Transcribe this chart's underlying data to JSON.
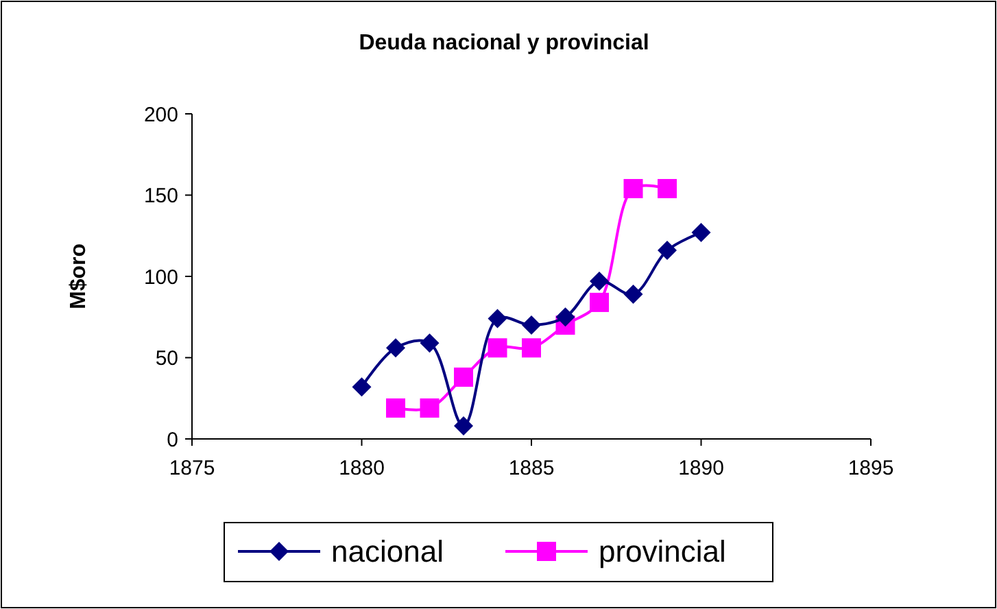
{
  "chart_data": {
    "type": "line",
    "title": "Deuda nacional y provincial",
    "ylabel": "M$oro",
    "xlim": [
      1875,
      1895
    ],
    "xticks": [
      1875,
      1880,
      1885,
      1890,
      1895
    ],
    "ylim": [
      0,
      200
    ],
    "yticks": [
      0,
      50,
      100,
      150,
      200
    ],
    "grid": false,
    "legend": "bottom",
    "series": [
      {
        "name": "nacional",
        "color": "#000080",
        "marker": "diamond",
        "x": [
          1880,
          1881,
          1882,
          1883,
          1884,
          1885,
          1886,
          1887,
          1888,
          1889,
          1890
        ],
        "values": [
          32,
          56,
          59,
          8,
          74,
          70,
          75,
          97,
          89,
          116,
          127
        ]
      },
      {
        "name": "provincial",
        "color": "#ff00ff",
        "marker": "square",
        "x": [
          1881,
          1882,
          1883,
          1884,
          1885,
          1886,
          1887,
          1888,
          1889
        ],
        "values": [
          19,
          19,
          38,
          56,
          56,
          70,
          84,
          154,
          154
        ]
      }
    ]
  }
}
